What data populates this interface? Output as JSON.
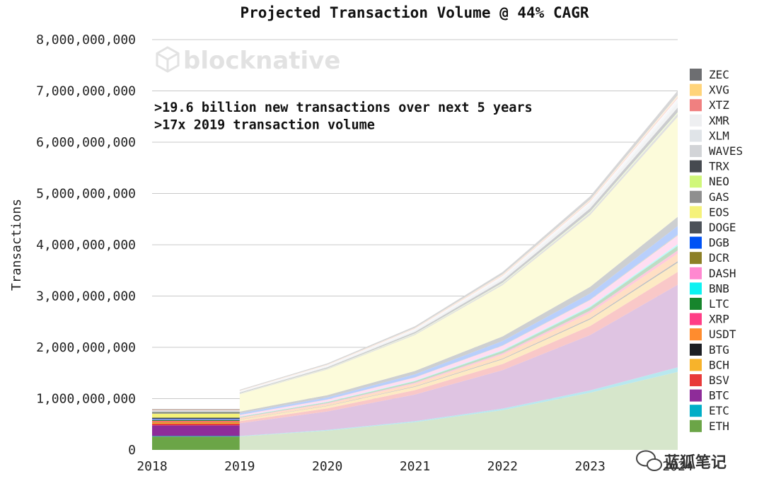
{
  "chart_data": {
    "type": "area",
    "stacked": true,
    "title": "Projected Transaction Volume @ 44% CAGR",
    "xlabel": "",
    "ylabel": "Transactions",
    "x": [
      2018,
      2019,
      2020,
      2021,
      2022,
      2023,
      2024
    ],
    "xtick_labels": [
      "2018",
      "2019",
      "2020",
      "2021",
      "2022",
      "2023",
      "2024"
    ],
    "ylim": [
      0,
      8000000000
    ],
    "yticks": [
      0,
      1000000000,
      2000000000,
      3000000000,
      4000000000,
      5000000000,
      6000000000,
      7000000000,
      8000000000
    ],
    "ytick_labels": [
      "0",
      "1,000,000,000",
      "2,000,000,000",
      "3,000,000,000",
      "4,000,000,000",
      "5,000,000,000",
      "6,000,000,000",
      "7,000,000,000",
      "8,000,000,000"
    ],
    "grid": true,
    "legend_position": "right",
    "actual_until": 2019,
    "annotations": [
      ">19.6 billion new transactions over next 5 years",
      ">17x 2019 transaction volume"
    ],
    "series": [
      {
        "name": "ETH",
        "color": "#6ba547",
        "values": [
          260000000,
          260000000,
          375000000,
          540000000,
          775000000,
          1115000000,
          1520000000
        ]
      },
      {
        "name": "ETC",
        "color": "#00aec7",
        "values": [
          10000000,
          10000000,
          15000000,
          20000000,
          30000000,
          45000000,
          90000000
        ]
      },
      {
        "name": "BTC",
        "color": "#8e2c99",
        "values": [
          210000000,
          250000000,
          360000000,
          520000000,
          750000000,
          1080000000,
          1610000000
        ]
      },
      {
        "name": "BSV",
        "color": "#e83a3a",
        "values": [
          30000000,
          40000000,
          60000000,
          85000000,
          120000000,
          175000000,
          250000000
        ]
      },
      {
        "name": "BCH",
        "color": "#f7b32b",
        "values": [
          20000000,
          30000000,
          45000000,
          65000000,
          90000000,
          130000000,
          180000000
        ]
      },
      {
        "name": "BTG",
        "color": "#1c1f24",
        "values": [
          5000000,
          5000000,
          7000000,
          10000000,
          15000000,
          20000000,
          30000000
        ]
      },
      {
        "name": "USDT",
        "color": "#ff8c2e",
        "values": [
          20000000,
          25000000,
          35000000,
          50000000,
          75000000,
          105000000,
          150000000
        ]
      },
      {
        "name": "XRP",
        "color": "#ff3d86",
        "values": [
          10000000,
          10000000,
          15000000,
          20000000,
          30000000,
          45000000,
          60000000
        ]
      },
      {
        "name": "LTC",
        "color": "#17852c",
        "values": [
          15000000,
          15000000,
          20000000,
          30000000,
          45000000,
          65000000,
          90000000
        ]
      },
      {
        "name": "BNB",
        "color": "#0df2f2",
        "values": [
          5000000,
          5000000,
          8000000,
          10000000,
          15000000,
          20000000,
          30000000
        ]
      },
      {
        "name": "DASH",
        "color": "#ff88d0",
        "values": [
          10000000,
          30000000,
          40000000,
          60000000,
          85000000,
          120000000,
          170000000
        ]
      },
      {
        "name": "DCR",
        "color": "#8c7f26",
        "values": [
          2000000,
          2000000,
          3000000,
          5000000,
          7000000,
          10000000,
          15000000
        ]
      },
      {
        "name": "DGB",
        "color": "#0052f5",
        "values": [
          10000000,
          30000000,
          40000000,
          60000000,
          85000000,
          120000000,
          170000000
        ]
      },
      {
        "name": "DOGE",
        "color": "#4d5259",
        "values": [
          20000000,
          35000000,
          45000000,
          65000000,
          90000000,
          130000000,
          180000000
        ]
      },
      {
        "name": "EOS",
        "color": "#f5f27a",
        "values": [
          80000000,
          340000000,
          500000000,
          700000000,
          1000000000,
          1400000000,
          1950000000
        ]
      },
      {
        "name": "GAS",
        "color": "#8f8f8f",
        "values": [
          10000000,
          10000000,
          15000000,
          20000000,
          30000000,
          45000000,
          60000000
        ]
      },
      {
        "name": "NEO",
        "color": "#d0f77a",
        "values": [
          5000000,
          5000000,
          7000000,
          10000000,
          15000000,
          20000000,
          30000000
        ]
      },
      {
        "name": "TRX",
        "color": "#464a50",
        "values": [
          15000000,
          15000000,
          20000000,
          30000000,
          45000000,
          65000000,
          90000000
        ]
      },
      {
        "name": "WAVES",
        "color": "#d2d4d7",
        "values": [
          20000000,
          15000000,
          20000000,
          30000000,
          45000000,
          65000000,
          90000000
        ]
      },
      {
        "name": "XLM",
        "color": "#e0e4e8",
        "values": [
          10000000,
          10000000,
          15000000,
          20000000,
          30000000,
          45000000,
          60000000
        ]
      },
      {
        "name": "XMR",
        "color": "#eeeff1",
        "values": [
          5000000,
          5000000,
          7000000,
          10000000,
          15000000,
          20000000,
          30000000
        ]
      },
      {
        "name": "XTZ",
        "color": "#f08080",
        "values": [
          5000000,
          5000000,
          7000000,
          10000000,
          15000000,
          20000000,
          30000000
        ]
      },
      {
        "name": "XVG",
        "color": "#ffd47a",
        "values": [
          5000000,
          5000000,
          7000000,
          10000000,
          15000000,
          20000000,
          30000000
        ]
      },
      {
        "name": "ZEC",
        "color": "#6d6e71",
        "values": [
          10000000,
          15000000,
          20000000,
          30000000,
          45000000,
          65000000,
          90000000
        ]
      }
    ]
  },
  "watermark": {
    "brand_text": "blocknative",
    "wechat_text": "蓝狐笔记"
  }
}
